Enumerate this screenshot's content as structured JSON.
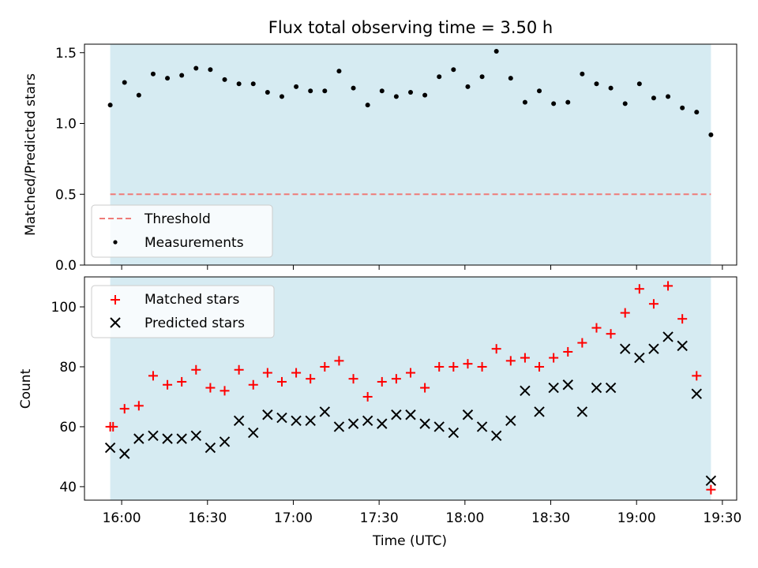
{
  "chart_data": [
    {
      "type": "scatter",
      "title": "Flux total observing time = 3.50 h",
      "ylabel": "Matched/Predicted stars",
      "ylim": [
        0,
        1.56
      ],
      "yticks": [
        0.0,
        0.5,
        1.0,
        1.5
      ],
      "ytick_labels": [
        "0.0",
        "0.5",
        "1.0",
        "1.5"
      ],
      "shaded_span": [
        "15:56",
        "19:26"
      ],
      "legend_position": "lower-left",
      "threshold": {
        "name": "Threshold",
        "value": 0.5,
        "color": "#ef7b78"
      },
      "series": [
        {
          "name": "Measurements",
          "color": "#000000",
          "x": [
            "15:56",
            "16:01",
            "16:06",
            "16:11",
            "16:16",
            "16:21",
            "16:26",
            "16:31",
            "16:36",
            "16:41",
            "16:46",
            "16:51",
            "16:56",
            "17:01",
            "17:06",
            "17:11",
            "17:16",
            "17:21",
            "17:26",
            "17:31",
            "17:36",
            "17:41",
            "17:46",
            "17:51",
            "17:56",
            "18:01",
            "18:06",
            "18:11",
            "18:16",
            "18:21",
            "18:26",
            "18:31",
            "18:36",
            "18:41",
            "18:46",
            "18:51",
            "18:56",
            "19:01",
            "19:06",
            "19:11",
            "19:16",
            "19:21",
            "19:26"
          ],
          "y": [
            1.13,
            1.29,
            1.2,
            1.35,
            1.32,
            1.34,
            1.39,
            1.38,
            1.31,
            1.28,
            1.28,
            1.22,
            1.19,
            1.26,
            1.23,
            1.23,
            1.37,
            1.25,
            1.13,
            1.23,
            1.19,
            1.22,
            1.2,
            1.33,
            1.38,
            1.26,
            1.33,
            1.51,
            1.32,
            1.15,
            1.23,
            1.14,
            1.15,
            1.35,
            1.28,
            1.25,
            1.14,
            1.28,
            1.18,
            1.19,
            1.11,
            1.08,
            0.92
          ]
        }
      ]
    },
    {
      "type": "scatter",
      "xlabel": "Time (UTC)",
      "ylabel": "Count",
      "ylim": [
        35.5,
        110
      ],
      "yticks": [
        40,
        60,
        80,
        100
      ],
      "ytick_labels": [
        "40",
        "60",
        "80",
        "100"
      ],
      "x_ticks": [
        "16:00",
        "16:30",
        "17:00",
        "17:30",
        "18:00",
        "18:30",
        "19:00",
        "19:30"
      ],
      "shaded_span": [
        "15:56",
        "19:26"
      ],
      "legend_position": "top-left",
      "series": [
        {
          "name": "Matched stars",
          "marker": "+",
          "color": "#ff0000",
          "x": [
            "15:56",
            "15:57",
            "16:01",
            "16:06",
            "16:11",
            "16:16",
            "16:21",
            "16:26",
            "16:31",
            "16:36",
            "16:41",
            "16:46",
            "16:51",
            "16:56",
            "17:01",
            "17:06",
            "17:11",
            "17:16",
            "17:21",
            "17:26",
            "17:31",
            "17:36",
            "17:41",
            "17:46",
            "17:51",
            "17:56",
            "18:01",
            "18:06",
            "18:11",
            "18:16",
            "18:21",
            "18:26",
            "18:31",
            "18:36",
            "18:41",
            "18:46",
            "18:51",
            "18:56",
            "19:01",
            "19:06",
            "19:11",
            "19:16",
            "19:21",
            "19:26"
          ],
          "y": [
            60,
            60,
            66,
            67,
            77,
            74,
            75,
            79,
            73,
            72,
            79,
            74,
            78,
            75,
            78,
            76,
            80,
            82,
            76,
            70,
            75,
            76,
            78,
            73,
            80,
            80,
            81,
            80,
            86,
            82,
            83,
            80,
            83,
            85,
            88,
            93,
            91,
            98,
            106,
            101,
            107,
            96,
            77,
            39
          ]
        },
        {
          "name": "Predicted stars",
          "marker": "x",
          "color": "#000000",
          "x": [
            "15:56",
            "16:01",
            "16:06",
            "16:11",
            "16:16",
            "16:21",
            "16:26",
            "16:31",
            "16:36",
            "16:41",
            "16:46",
            "16:51",
            "16:56",
            "17:01",
            "17:06",
            "17:11",
            "17:16",
            "17:21",
            "17:26",
            "17:31",
            "17:36",
            "17:41",
            "17:46",
            "17:51",
            "17:56",
            "18:01",
            "18:06",
            "18:11",
            "18:16",
            "18:21",
            "18:26",
            "18:31",
            "18:36",
            "18:41",
            "18:46",
            "18:51",
            "18:56",
            "19:01",
            "19:06",
            "19:11",
            "19:16",
            "19:21",
            "19:26"
          ],
          "y": [
            53,
            51,
            56,
            57,
            56,
            56,
            57,
            53,
            55,
            62,
            58,
            64,
            63,
            62,
            62,
            65,
            60,
            61,
            62,
            61,
            64,
            64,
            61,
            60,
            58,
            64,
            60,
            57,
            62,
            72,
            65,
            73,
            74,
            65,
            73,
            73,
            86,
            83,
            86,
            90,
            87,
            71,
            42
          ]
        }
      ]
    }
  ]
}
